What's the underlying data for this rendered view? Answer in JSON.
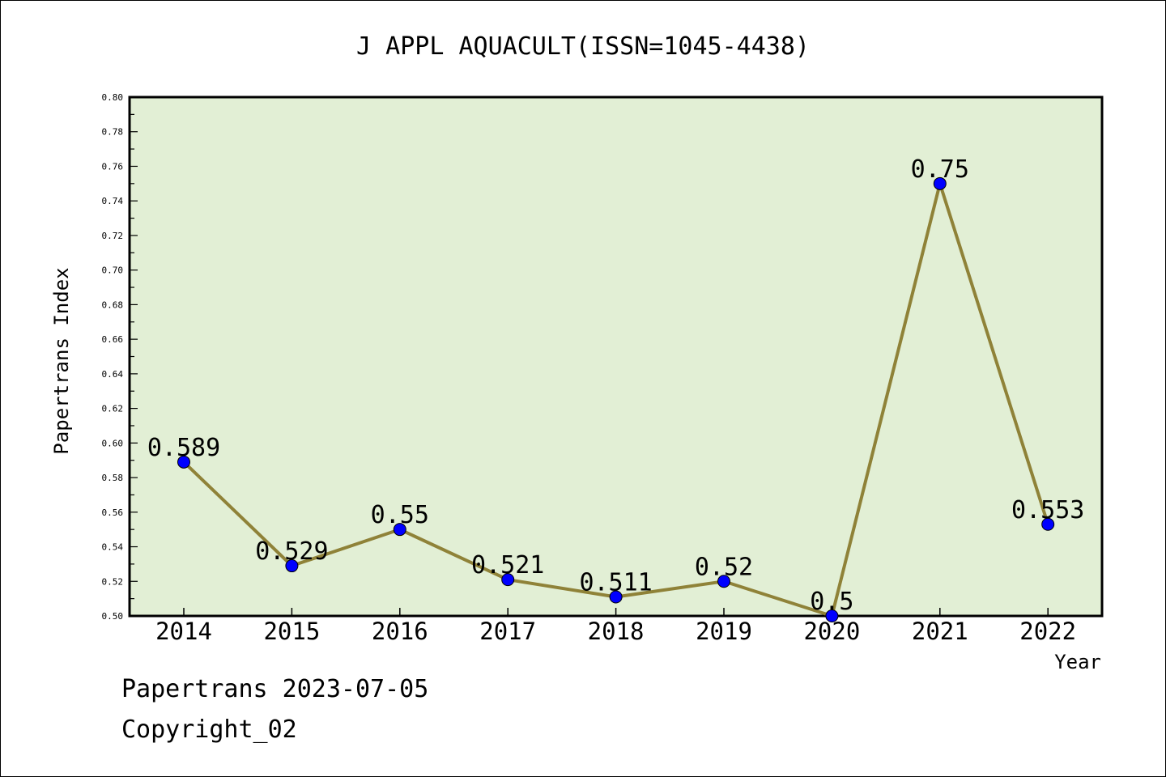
{
  "chart_data": {
    "type": "line",
    "title": "J APPL AQUACULT(ISSN=1045-4438)",
    "xlabel": "Year",
    "ylabel": "Papertrans Index",
    "categories": [
      "2014",
      "2015",
      "2016",
      "2017",
      "2018",
      "2019",
      "2020",
      "2021",
      "2022"
    ],
    "series": [
      {
        "values": [
          0.589,
          0.529,
          0.55,
          0.521,
          0.511,
          0.52,
          0.5,
          0.75,
          0.553
        ]
      }
    ],
    "data_labels": [
      "0.589",
      "0.529",
      "0.55",
      "0.521",
      "0.511",
      "0.52",
      "0.5",
      "0.75",
      "0.553"
    ],
    "ylim": [
      0.5,
      0.8
    ],
    "ytick_labels": [
      "0.50",
      "0.52",
      "0.54",
      "0.56",
      "0.58",
      "0.60",
      "0.62",
      "0.64",
      "0.66",
      "0.68",
      "0.70",
      "0.72",
      "0.74",
      "0.76",
      "0.78",
      "0.80"
    ],
    "grid": false,
    "legend": "none",
    "colors": {
      "plot_background": "#e2efd5",
      "line": "#8f8238",
      "marker": "#0000ff"
    }
  },
  "footer": {
    "line1": "Papertrans 2023-07-05",
    "line2": "Copyright_02"
  }
}
